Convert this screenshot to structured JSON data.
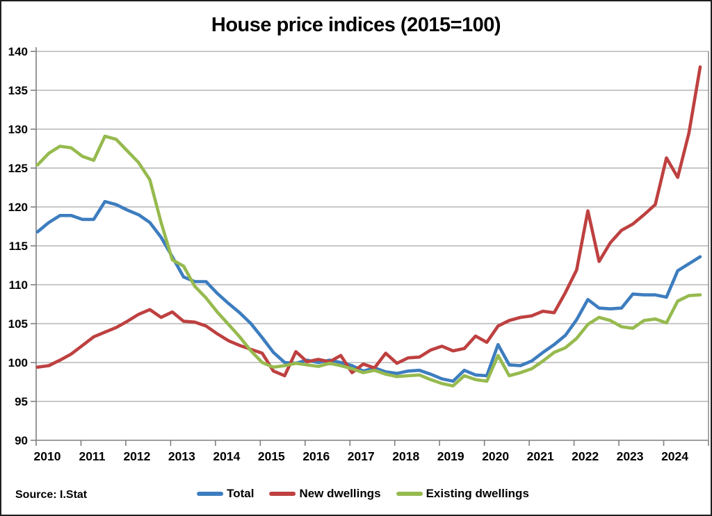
{
  "title": "House price indices (2015=100)",
  "footer": {
    "source": "Source: I.Stat"
  },
  "axis_colors": {
    "gridline": "#a6a6a6",
    "axis": "#7f7f7f",
    "text": "#000000"
  },
  "chart_data": {
    "type": "line",
    "title": "House price indices (2015=100)",
    "x_unit": "quarter",
    "x_start": "2010-Q1",
    "x_end": "2024-Q4",
    "x_tick_labels": [
      "2010",
      "2011",
      "2012",
      "2013",
      "2014",
      "2015",
      "2016",
      "2017",
      "2018",
      "2019",
      "2020",
      "2021",
      "2022",
      "2023",
      "2024"
    ],
    "ylim": [
      90,
      140
    ],
    "y_step": 5,
    "grid": true,
    "legend_position": "bottom",
    "source": "Source: I.Stat",
    "series": [
      {
        "name": "Total",
        "color": "#3D7DBF",
        "values": [
          116.8,
          118.0,
          118.9,
          118.9,
          118.4,
          118.4,
          120.7,
          120.3,
          119.6,
          119.0,
          118.0,
          116.1,
          113.6,
          111.0,
          110.4,
          110.4,
          108.9,
          107.6,
          106.4,
          105.0,
          103.2,
          101.3,
          100.0,
          99.9,
          100.3,
          100.0,
          100.3,
          100.0,
          99.6,
          98.9,
          99.3,
          98.8,
          98.6,
          98.9,
          99.0,
          98.5,
          97.9,
          97.6,
          99.0,
          98.4,
          98.3,
          102.3,
          99.7,
          99.6,
          100.2,
          101.3,
          102.3,
          103.5,
          105.5,
          108.1,
          107.0,
          106.9,
          107.0,
          108.8,
          108.7,
          108.7,
          108.4,
          111.8,
          112.7,
          113.6
        ]
      },
      {
        "name": "New dwellings",
        "color": "#BE4040",
        "values": [
          99.4,
          99.6,
          100.3,
          101.1,
          102.2,
          103.3,
          103.9,
          104.5,
          105.3,
          106.2,
          106.8,
          105.8,
          106.5,
          105.3,
          105.2,
          104.7,
          103.7,
          102.8,
          102.2,
          101.7,
          101.2,
          98.9,
          98.3,
          101.4,
          100.1,
          100.4,
          100.1,
          100.9,
          98.7,
          99.8,
          99.3,
          101.2,
          99.9,
          100.6,
          100.7,
          101.6,
          102.1,
          101.5,
          101.8,
          103.4,
          102.6,
          104.7,
          105.4,
          105.8,
          106.0,
          106.6,
          106.4,
          109.0,
          111.9,
          119.5,
          113.0,
          115.4,
          117.0,
          117.8,
          119.0,
          120.3,
          126.3,
          123.8,
          129.5,
          138.0
        ]
      },
      {
        "name": "Existing dwellings",
        "color": "#96BA4E",
        "values": [
          125.4,
          126.9,
          127.8,
          127.6,
          126.5,
          126.0,
          129.1,
          128.7,
          127.2,
          125.7,
          123.5,
          118.0,
          113.2,
          112.4,
          109.8,
          108.3,
          106.5,
          104.9,
          103.3,
          101.5,
          100.0,
          99.4,
          99.6,
          99.9,
          99.7,
          99.5,
          99.9,
          99.6,
          99.2,
          98.7,
          99.0,
          98.5,
          98.2,
          98.3,
          98.4,
          97.8,
          97.3,
          97.0,
          98.3,
          97.8,
          97.6,
          100.9,
          98.3,
          98.7,
          99.2,
          100.2,
          101.3,
          101.9,
          103.1,
          104.9,
          105.8,
          105.4,
          104.6,
          104.4,
          105.4,
          105.6,
          105.1,
          107.9,
          108.6,
          108.7
        ]
      }
    ]
  }
}
